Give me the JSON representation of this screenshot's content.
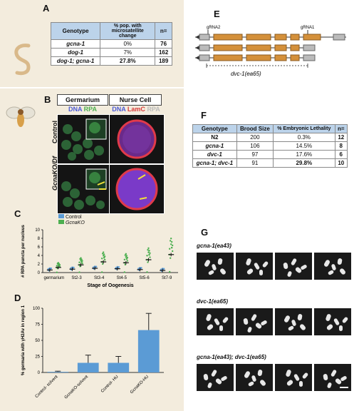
{
  "panel_a": {
    "letter": "A",
    "headers": [
      "Genotype",
      "% pop. with microsatellite change",
      "n="
    ],
    "rows": [
      {
        "genotype": "gcna-1",
        "value": "0%",
        "n": "76"
      },
      {
        "genotype": "dog-1",
        "value": "7%",
        "n": "162"
      },
      {
        "genotype": "dog-1; gcna-1",
        "value": "27.8%",
        "n": "189"
      }
    ]
  },
  "panel_b": {
    "letter": "B",
    "col_germarium": "Germarium",
    "col_nurse": "Nurse Cell",
    "stain_left": [
      "DNA",
      "RPA"
    ],
    "stain_right": [
      "DNA",
      "LamC",
      "RPA"
    ],
    "row_control": "Control",
    "row_mutant": "GcnaKO/Df"
  },
  "panel_c": {
    "letter": "C",
    "legend": [
      "Control",
      "GcnaKO"
    ],
    "colors": {
      "control": "#5b9bd5",
      "mutant": "#4caf50"
    }
  },
  "panel_d": {
    "letter": "D",
    "colors": {
      "bar": "#5b9bd5"
    }
  },
  "chart_data": [
    {
      "type": "scatter",
      "ylabel": "# RPA puncta per nucleus",
      "xlabel": "Stage of Oogenesis",
      "categories": [
        "germarium",
        "St2-3",
        "St3-4",
        "St4-5",
        "St5-6",
        "St7-9"
      ],
      "ylim": [
        0,
        10
      ],
      "yticks": [
        0,
        2,
        4,
        6,
        8,
        10
      ],
      "series": [
        {
          "name": "Control",
          "mean": [
            0.6,
            0.8,
            1.0,
            0.9,
            0.7,
            0.5
          ]
        },
        {
          "name": "GcnaKO",
          "mean": [
            1.2,
            1.8,
            2.5,
            2.3,
            3.0,
            4.2
          ]
        }
      ]
    },
    {
      "type": "bar",
      "ylabel": "% germaria with γH2Av in region 1",
      "categories": [
        "Control- solvent",
        "GcnaKO-solvent",
        "Control- HU",
        "GcnaKO-HU"
      ],
      "values": [
        1,
        15,
        15,
        66
      ],
      "errors": [
        1,
        12,
        10,
        26
      ],
      "ylim": [
        0,
        100
      ],
      "yticks": [
        0,
        25,
        50,
        75,
        100
      ]
    }
  ],
  "panel_e": {
    "letter": "E",
    "grna2": "gRNA2",
    "grna1": "gRNA1",
    "gene_label": "dvc-1(ea65)"
  },
  "panel_f": {
    "letter": "F",
    "headers": [
      "Genotype",
      "Brood Size",
      "% Embryonic Lethality",
      "n="
    ],
    "rows": [
      {
        "genotype": "N2",
        "brood": "200",
        "lethality": "0.3%",
        "n": "12"
      },
      {
        "genotype": "gcna-1",
        "brood": "106",
        "lethality": "14.5%",
        "n": "8"
      },
      {
        "genotype": "dvc-1",
        "brood": "97",
        "lethality": "17.6%",
        "n": "6"
      },
      {
        "genotype": "gcna-1; dvc-1",
        "brood": "91",
        "lethality": "29.8%",
        "n": "10"
      }
    ]
  },
  "panel_g": {
    "letter": "G",
    "groups": [
      "gcna-1(ea43)",
      "dvc-1(ea65)",
      "gcna-1(ea43); dvc-1(ea65)"
    ]
  }
}
